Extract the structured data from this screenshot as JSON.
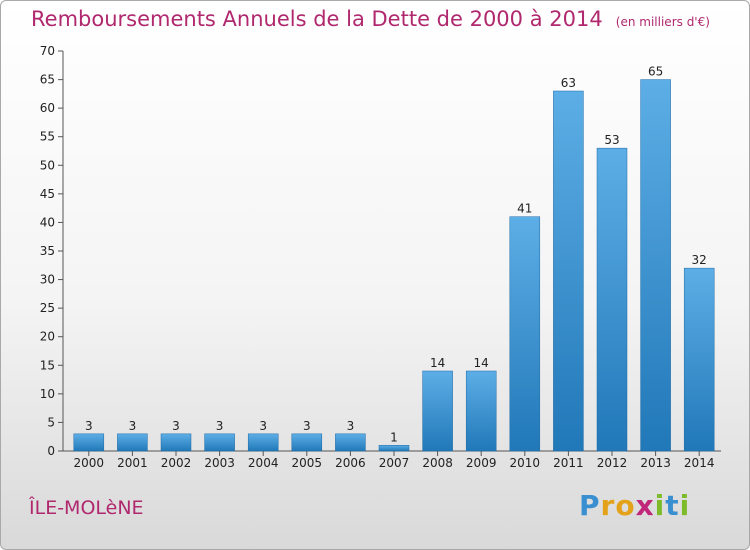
{
  "chart_data": {
    "type": "bar",
    "title": "Remboursements Annuels de la Dette de 2000 à 2014",
    "subtitle": "(en milliers d'€)",
    "categories": [
      "2000",
      "2001",
      "2002",
      "2003",
      "2004",
      "2005",
      "2006",
      "2007",
      "2008",
      "2009",
      "2010",
      "2011",
      "2012",
      "2013",
      "2014"
    ],
    "values": [
      3,
      3,
      3,
      3,
      3,
      3,
      3,
      1,
      14,
      14,
      41,
      63,
      53,
      65,
      32
    ],
    "ylim": [
      0,
      70
    ],
    "yticks": [
      0,
      5,
      10,
      15,
      20,
      25,
      30,
      35,
      40,
      45,
      50,
      55,
      60,
      65,
      70
    ],
    "grid": false,
    "colors": {
      "bar_light": "#5daee6",
      "bar_dark": "#2178b8",
      "title": "#b0286e"
    }
  },
  "footer": {
    "commune": "ÎLE-MOLèNE",
    "brand_letters": [
      {
        "ch": "P",
        "color": "#3a8fd0"
      },
      {
        "ch": "r",
        "color": "#e3a21a"
      },
      {
        "ch": "o",
        "color": "#e3a21a"
      },
      {
        "ch": "x",
        "color": "#c0267a"
      },
      {
        "ch": "i",
        "color": "#7dbb2a"
      },
      {
        "ch": "t",
        "color": "#3a8fd0"
      },
      {
        "ch": "i",
        "color": "#7dbb2a"
      }
    ]
  }
}
